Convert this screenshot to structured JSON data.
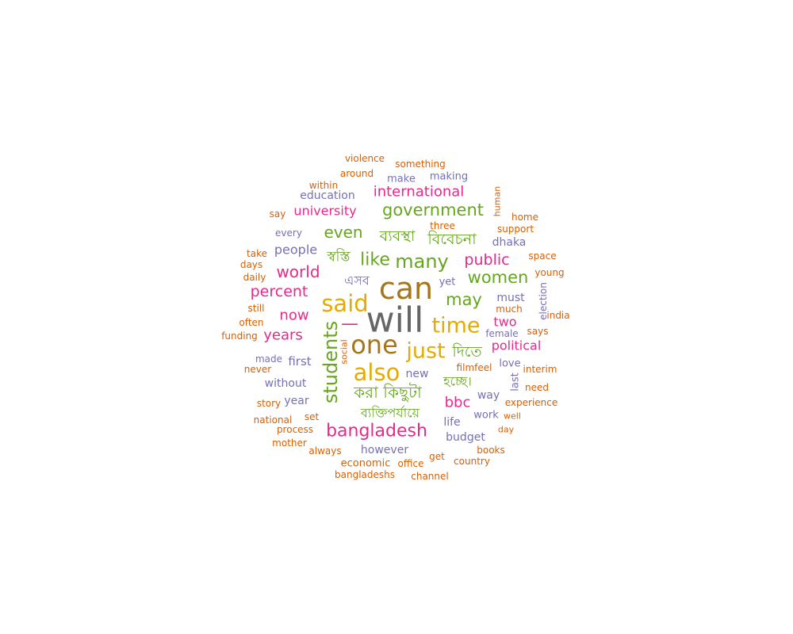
{
  "palette": {
    "gray": "#666666",
    "brown": "#A6761D",
    "yellow": "#E6AB02",
    "green": "#66A61E",
    "pink": "#E7298A",
    "purple": "#7570B3",
    "orange": "#D95F02"
  },
  "words": [
    {
      "id": "will",
      "text": "will",
      "weight": 100,
      "color": "gray"
    },
    {
      "id": "can",
      "text": "can",
      "weight": 86,
      "color": "brown"
    },
    {
      "id": "one",
      "text": "one",
      "weight": 76,
      "color": "brown"
    },
    {
      "id": "said",
      "text": "said",
      "weight": 66,
      "color": "yellow"
    },
    {
      "id": "also",
      "text": "also",
      "weight": 66,
      "color": "yellow"
    },
    {
      "id": "time",
      "text": "time",
      "weight": 64,
      "color": "yellow"
    },
    {
      "id": "just",
      "text": "just",
      "weight": 64,
      "color": "yellow"
    },
    {
      "id": "students",
      "text": "students",
      "weight": 54,
      "color": "green"
    },
    {
      "id": "many",
      "text": "many",
      "weight": 52,
      "color": "green"
    },
    {
      "id": "like",
      "text": "like",
      "weight": 50,
      "color": "green"
    },
    {
      "id": "bangladesh",
      "text": "bangladesh",
      "weight": 50,
      "color": "pink"
    },
    {
      "id": "government",
      "text": "government",
      "weight": 46,
      "color": "green"
    },
    {
      "id": "may",
      "text": "may",
      "weight": 46,
      "color": "green"
    },
    {
      "id": "women",
      "text": "women",
      "weight": 46,
      "color": "green"
    },
    {
      "id": "emdash",
      "text": "—",
      "weight": 46,
      "color": "pink"
    },
    {
      "id": "kichhuta",
      "text": "করা কিছুটা",
      "weight": 44,
      "color": "green"
    },
    {
      "id": "even",
      "text": "even",
      "weight": 44,
      "color": "green"
    },
    {
      "id": "byabostha",
      "text": "ব্যবস্থা",
      "weight": 42,
      "color": "green"
    },
    {
      "id": "bibechona",
      "text": "বিবেচনা",
      "weight": 42,
      "color": "green"
    },
    {
      "id": "dite",
      "text": "দিতে",
      "weight": 42,
      "color": "green"
    },
    {
      "id": "world",
      "text": "world",
      "weight": 42,
      "color": "pink"
    },
    {
      "id": "percent",
      "text": "percent",
      "weight": 40,
      "color": "pink"
    },
    {
      "id": "public",
      "text": "public",
      "weight": 40,
      "color": "pink"
    },
    {
      "id": "now",
      "text": "now",
      "weight": 38,
      "color": "pink"
    },
    {
      "id": "years",
      "text": "years",
      "weight": 38,
      "color": "pink"
    },
    {
      "id": "bbc",
      "text": "bbc",
      "weight": 38,
      "color": "pink"
    },
    {
      "id": "international",
      "text": "international",
      "weight": 38,
      "color": "pink"
    },
    {
      "id": "swasti",
      "text": "স্বস্তি",
      "weight": 38,
      "color": "green"
    },
    {
      "id": "ebong",
      "text": "এসব",
      "weight": 36,
      "color": "purple"
    },
    {
      "id": "hochchhe",
      "text": "হচ্ছে।",
      "weight": 36,
      "color": "green"
    },
    {
      "id": "byaktiporjaye",
      "text": "ব্যক্তিপর্যায়ে",
      "weight": 36,
      "color": "green"
    },
    {
      "id": "university",
      "text": "university",
      "weight": 34,
      "color": "pink"
    },
    {
      "id": "people",
      "text": "people",
      "weight": 34,
      "color": "purple"
    },
    {
      "id": "political",
      "text": "political",
      "weight": 34,
      "color": "pink"
    },
    {
      "id": "two",
      "text": "two",
      "weight": 34,
      "color": "pink"
    },
    {
      "id": "must",
      "text": "must",
      "weight": 30,
      "color": "purple"
    },
    {
      "id": "however",
      "text": "however",
      "weight": 30,
      "color": "purple"
    },
    {
      "id": "without",
      "text": "without",
      "weight": 30,
      "color": "purple"
    },
    {
      "id": "first",
      "text": "first",
      "weight": 30,
      "color": "purple"
    },
    {
      "id": "budget",
      "text": "budget",
      "weight": 28,
      "color": "purple"
    },
    {
      "id": "life",
      "text": "life",
      "weight": 28,
      "color": "purple"
    },
    {
      "id": "new",
      "text": "new",
      "weight": 28,
      "color": "purple"
    },
    {
      "id": "year",
      "text": "year",
      "weight": 28,
      "color": "purple"
    },
    {
      "id": "education",
      "text": "education",
      "weight": 28,
      "color": "purple"
    },
    {
      "id": "way",
      "text": "way",
      "weight": 28,
      "color": "purple"
    },
    {
      "id": "dhaka",
      "text": "dhaka",
      "weight": 28,
      "color": "purple"
    },
    {
      "id": "work",
      "text": "work",
      "weight": 26,
      "color": "purple"
    },
    {
      "id": "yet",
      "text": "yet",
      "weight": 26,
      "color": "purple"
    },
    {
      "id": "last",
      "text": "last",
      "weight": 26,
      "color": "purple"
    },
    {
      "id": "love",
      "text": "love",
      "weight": 26,
      "color": "purple"
    },
    {
      "id": "make",
      "text": "make",
      "weight": 26,
      "color": "purple"
    },
    {
      "id": "making",
      "text": "making",
      "weight": 26,
      "color": "purple"
    },
    {
      "id": "every",
      "text": "every",
      "weight": 24,
      "color": "purple"
    },
    {
      "id": "made",
      "text": "made",
      "weight": 24,
      "color": "purple"
    },
    {
      "id": "female",
      "text": "female",
      "weight": 24,
      "color": "purple"
    },
    {
      "id": "election",
      "text": "election",
      "weight": 24,
      "color": "purple"
    },
    {
      "id": "economic",
      "text": "economic",
      "weight": 26,
      "color": "orange"
    },
    {
      "id": "bangladeshs",
      "text": "bangladeshs",
      "weight": 24,
      "color": "orange"
    },
    {
      "id": "much",
      "text": "much",
      "weight": 24,
      "color": "orange"
    },
    {
      "id": "violence",
      "text": "violence",
      "weight": 22,
      "color": "orange"
    },
    {
      "id": "something",
      "text": "something",
      "weight": 22,
      "color": "orange"
    },
    {
      "id": "around",
      "text": "around",
      "weight": 24,
      "color": "orange"
    },
    {
      "id": "within",
      "text": "within",
      "weight": 22,
      "color": "orange"
    },
    {
      "id": "human",
      "text": "human",
      "weight": 22,
      "color": "orange"
    },
    {
      "id": "say",
      "text": "say",
      "weight": 22,
      "color": "orange"
    },
    {
      "id": "home",
      "text": "home",
      "weight": 22,
      "color": "orange"
    },
    {
      "id": "three",
      "text": "three",
      "weight": 22,
      "color": "orange"
    },
    {
      "id": "support",
      "text": "support",
      "weight": 22,
      "color": "orange"
    },
    {
      "id": "take",
      "text": "take",
      "weight": 22,
      "color": "orange"
    },
    {
      "id": "days",
      "text": "days",
      "weight": 22,
      "color": "orange"
    },
    {
      "id": "space",
      "text": "space",
      "weight": 22,
      "color": "orange"
    },
    {
      "id": "daily",
      "text": "daily",
      "weight": 22,
      "color": "orange"
    },
    {
      "id": "young",
      "text": "young",
      "weight": 22,
      "color": "orange"
    },
    {
      "id": "still",
      "text": "still",
      "weight": 22,
      "color": "orange"
    },
    {
      "id": "often",
      "text": "often",
      "weight": 22,
      "color": "orange"
    },
    {
      "id": "india",
      "text": "india",
      "weight": 22,
      "color": "orange"
    },
    {
      "id": "funding",
      "text": "funding",
      "weight": 22,
      "color": "orange"
    },
    {
      "id": "says",
      "text": "says",
      "weight": 22,
      "color": "orange"
    },
    {
      "id": "social",
      "text": "social",
      "weight": 20,
      "color": "orange"
    },
    {
      "id": "never",
      "text": "never",
      "weight": 22,
      "color": "orange"
    },
    {
      "id": "filmfeel",
      "text": "filmfeel",
      "weight": 22,
      "color": "orange"
    },
    {
      "id": "interim",
      "text": "interim",
      "weight": 22,
      "color": "orange"
    },
    {
      "id": "need",
      "text": "need",
      "weight": 22,
      "color": "orange"
    },
    {
      "id": "story",
      "text": "story",
      "weight": 22,
      "color": "orange"
    },
    {
      "id": "experience",
      "text": "experience",
      "weight": 22,
      "color": "orange"
    },
    {
      "id": "set",
      "text": "set",
      "weight": 22,
      "color": "orange"
    },
    {
      "id": "national",
      "text": "national",
      "weight": 22,
      "color": "orange"
    },
    {
      "id": "well",
      "text": "well",
      "weight": 20,
      "color": "orange"
    },
    {
      "id": "process",
      "text": "process",
      "weight": 22,
      "color": "orange"
    },
    {
      "id": "day",
      "text": "day",
      "weight": 20,
      "color": "orange"
    },
    {
      "id": "mother",
      "text": "mother",
      "weight": 22,
      "color": "orange"
    },
    {
      "id": "always",
      "text": "always",
      "weight": 22,
      "color": "orange"
    },
    {
      "id": "get",
      "text": "get",
      "weight": 22,
      "color": "orange"
    },
    {
      "id": "books",
      "text": "books",
      "weight": 22,
      "color": "orange"
    },
    {
      "id": "office",
      "text": "office",
      "weight": 22,
      "color": "orange"
    },
    {
      "id": "country",
      "text": "country",
      "weight": 22,
      "color": "orange"
    },
    {
      "id": "channel",
      "text": "channel",
      "weight": 22,
      "color": "orange"
    }
  ]
}
